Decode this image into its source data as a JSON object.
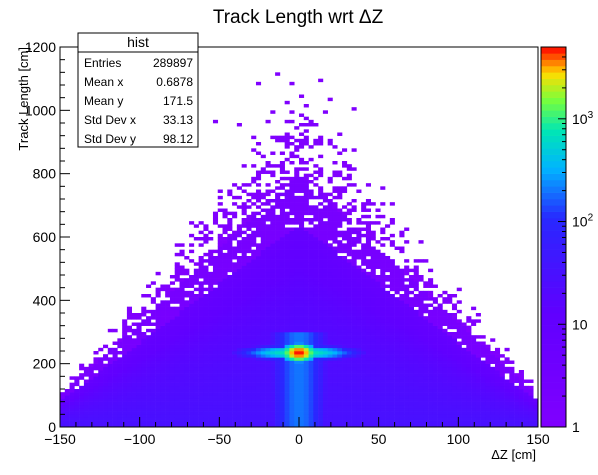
{
  "chart_data": {
    "type": "heatmap",
    "title": "Track Length wrt ΔZ",
    "xlabel": "ΔZ [cm]",
    "ylabel": "Track Length [cm]",
    "xlim": [
      -150,
      150
    ],
    "ylim": [
      0,
      1200
    ],
    "x_ticks": [
      "−150",
      "−100",
      "−50",
      "0",
      "50",
      "100",
      "150"
    ],
    "x_tick_values": [
      -150,
      -100,
      -50,
      0,
      50,
      100,
      150
    ],
    "y_ticks": [
      "0",
      "200",
      "400",
      "600",
      "800",
      "1000",
      "1200"
    ],
    "y_tick_values": [
      0,
      200,
      400,
      600,
      800,
      1000,
      1200
    ],
    "color_scale": "log",
    "z_range": [
      1,
      5000
    ],
    "colorbar_ticks": [
      {
        "value": 1,
        "label": "1"
      },
      {
        "value": 10,
        "label": "10"
      },
      {
        "value": 100,
        "label": "10",
        "exp": "2"
      },
      {
        "value": 1000,
        "label": "10",
        "exp": "3"
      }
    ],
    "grid": false,
    "stats": {
      "name": "hist",
      "rows": [
        {
          "label": "Entries",
          "value": "289897"
        },
        {
          "label": "Mean x",
          "value": "0.6878"
        },
        {
          "label": "Mean y",
          "value": "171.5"
        },
        {
          "label": "Std Dev x",
          "value": "33.13"
        },
        {
          "label": "Std Dev y",
          "value": "98.12"
        }
      ]
    },
    "distribution_description_values": {
      "peak_x": 0,
      "peak_y": 235,
      "envelope_peak_y": 800,
      "envelope_edge_y": 100
    }
  }
}
